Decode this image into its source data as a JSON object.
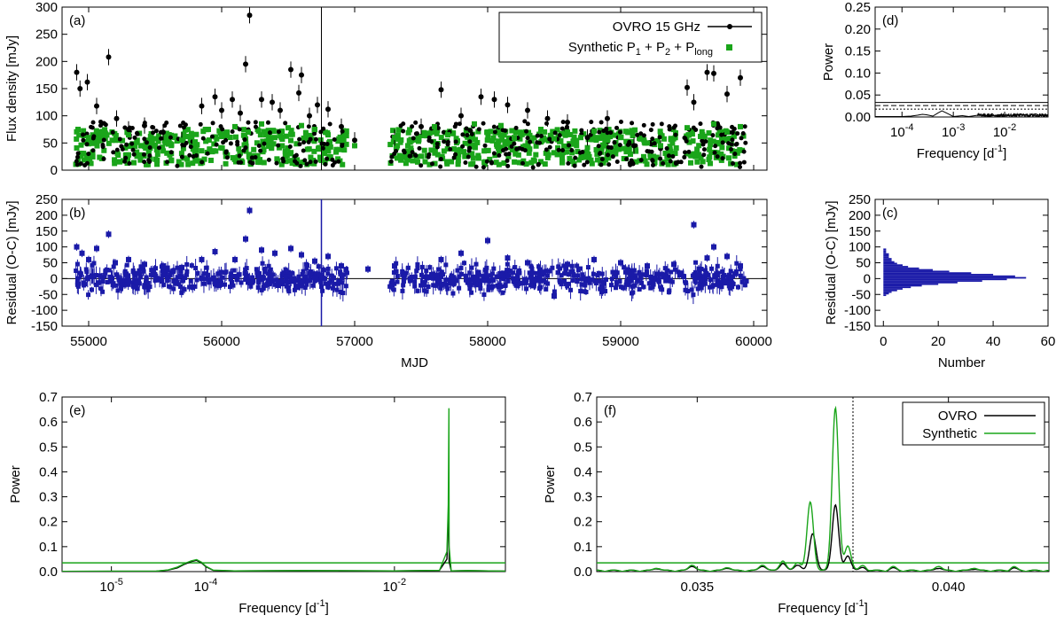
{
  "chart_data": [
    {
      "id": "a",
      "panel_label": "(a)",
      "type": "scatter",
      "ylabel": "Flux density [mJy]",
      "xlabel": "",
      "xlim": [
        54800,
        60100
      ],
      "ylim": [
        0,
        300
      ],
      "xticks": [
        55000,
        56000,
        57000,
        58000,
        59000,
        60000
      ],
      "xtick_labels_visible": false,
      "yticks": [
        0,
        50,
        100,
        150,
        200,
        250,
        300
      ],
      "legend": {
        "position": "top-right",
        "entries": [
          {
            "label": "OVRO 15 GHz",
            "color": "#000000",
            "marker": "point-line"
          },
          {
            "label": "Synthetic P",
            "sub1": "1",
            "mid1": " + P",
            "sub2": "2",
            "mid2": " + P",
            "sub3": "long",
            "color": "#1aa51a",
            "marker": "square"
          }
        ]
      },
      "series": [
        {
          "name": "OVRO 15 GHz",
          "color": "#000000",
          "x": [
            54910,
            54935,
            54990,
            55060,
            55150,
            55210,
            55300,
            55420,
            55560,
            55700,
            55850,
            55950,
            56000,
            56080,
            56140,
            56180,
            56210,
            56300,
            56380,
            56440,
            56520,
            56580,
            56600,
            56660,
            56720,
            56800,
            56900,
            57000,
            57300,
            57500,
            57650,
            57800,
            57950,
            58050,
            58150,
            58300,
            58450,
            58600,
            58750,
            58900,
            59100,
            59300,
            59500,
            59550,
            59650,
            59700,
            59800,
            59900
          ],
          "y": [
            180,
            150,
            162,
            118,
            208,
            95,
            75,
            82,
            70,
            55,
            118,
            135,
            110,
            130,
            105,
            195,
            285,
            130,
            125,
            110,
            185,
            142,
            175,
            100,
            120,
            112,
            80,
            55,
            60,
            80,
            148,
            100,
            135,
            130,
            120,
            110,
            95,
            88,
            60,
            95,
            45,
            40,
            152,
            125,
            180,
            178,
            140,
            170
          ]
        },
        {
          "name": "Synthetic P1 + P2 + Plong",
          "color": "#1aa51a",
          "x": [
            54920,
            55000,
            55100,
            55200,
            55300,
            55400,
            55500,
            55600,
            55700,
            55800,
            55900,
            56000,
            56100,
            56200,
            56300,
            56400,
            56500,
            56600,
            56700,
            56800,
            56900,
            57000,
            57300,
            57400,
            57600,
            57700,
            57900,
            58000,
            58100,
            58200,
            58400,
            58500,
            58600,
            58700,
            58800,
            58900,
            59000,
            59200,
            59300,
            59500,
            59600,
            59700,
            59800,
            59900
          ],
          "y": [
            75,
            60,
            70,
            55,
            65,
            45,
            58,
            48,
            55,
            52,
            75,
            62,
            80,
            70,
            85,
            60,
            78,
            82,
            75,
            65,
            55,
            45,
            60,
            45,
            80,
            65,
            85,
            70,
            82,
            60,
            75,
            58,
            70,
            60,
            72,
            55,
            60,
            50,
            45,
            78,
            62,
            85,
            70,
            80
          ]
        }
      ]
    },
    {
      "id": "b",
      "panel_label": "(b)",
      "type": "scatter",
      "ylabel": "Residual (O-C) [mJy]",
      "xlabel": "MJD",
      "xlim": [
        54800,
        60100
      ],
      "ylim": [
        -150,
        250
      ],
      "xticks": [
        55000,
        56000,
        57000,
        58000,
        59000,
        60000
      ],
      "yticks": [
        -150,
        -100,
        -50,
        0,
        50,
        100,
        150,
        200,
        250
      ],
      "series": [
        {
          "name": "Residual",
          "color": "#1a1aa8",
          "x": [
            54910,
            54950,
            55000,
            55060,
            55150,
            55200,
            55300,
            55420,
            55560,
            55700,
            55850,
            55950,
            56100,
            56180,
            56210,
            56300,
            56400,
            56520,
            56600,
            56700,
            56800,
            56900,
            57100,
            57300,
            57650,
            57800,
            58000,
            58150,
            58300,
            58500,
            58600,
            58800,
            59000,
            59200,
            59400,
            59550,
            59650,
            59700,
            59800,
            59900
          ],
          "y": [
            100,
            80,
            60,
            95,
            140,
            50,
            60,
            45,
            40,
            35,
            60,
            85,
            60,
            125,
            215,
            90,
            80,
            95,
            75,
            55,
            70,
            40,
            30,
            40,
            60,
            80,
            120,
            65,
            50,
            -55,
            45,
            60,
            50,
            40,
            45,
            170,
            65,
            100,
            70,
            40
          ]
        }
      ]
    },
    {
      "id": "c",
      "panel_label": "(c)",
      "type": "bar",
      "orientation": "horizontal",
      "xlabel": "Number",
      "ylabel": "Residual (O-C) [mJy]",
      "xlim": [
        -3,
        60
      ],
      "ylim": [
        -150,
        250
      ],
      "xticks": [
        0,
        20,
        40,
        60
      ],
      "yticks": [
        -150,
        -100,
        -50,
        0,
        50,
        100,
        150,
        200,
        250
      ],
      "bins": [
        -55,
        -50,
        -45,
        -40,
        -35,
        -30,
        -25,
        -20,
        -15,
        -10,
        -5,
        0,
        5,
        10,
        15,
        20,
        25,
        30,
        35,
        40,
        45,
        50,
        55,
        60,
        65,
        70,
        75,
        80,
        85,
        90
      ],
      "counts": [
        1,
        2,
        3,
        5,
        7,
        10,
        14,
        20,
        27,
        36,
        45,
        52,
        48,
        40,
        32,
        24,
        18,
        13,
        9,
        7,
        5,
        4,
        3,
        3,
        2,
        2,
        2,
        1,
        1,
        1
      ],
      "color": "#1a1aa8"
    },
    {
      "id": "d",
      "panel_label": "(d)",
      "type": "line",
      "xscale": "log",
      "xlabel": "Frequency [d",
      "xlabel_sup": "-1",
      "xlabel_end": "]",
      "ylabel": "Power",
      "xlim": [
        3e-05,
        0.07
      ],
      "ylim": [
        0,
        0.25
      ],
      "xticks": [
        0.0001,
        0.001,
        0.01
      ],
      "xtick_mantissa": "10",
      "xtick_exponents": [
        "-4",
        "-3",
        "-2"
      ],
      "yticks": [
        0,
        0.05,
        0.1,
        0.15,
        0.2,
        0.25
      ],
      "ytick_labels": [
        "0.00",
        "0.05",
        "0.10",
        "0.15",
        "0.20",
        "0.25"
      ],
      "hlines": [
        {
          "y": 0.033,
          "style": "solid"
        },
        {
          "y": 0.026,
          "style": "dash"
        },
        {
          "y": 0.018,
          "style": "dot"
        }
      ],
      "series": [
        {
          "name": "OVRO",
          "color": "#000000",
          "x": [
            3e-05,
            6e-05,
            0.0001,
            0.00015,
            0.0002,
            0.00025,
            0.0003,
            0.0004,
            0.0005,
            0.0006,
            0.0008,
            0.001,
            0.0015,
            0.002,
            0.003,
            0.005,
            0.008,
            0.012,
            0.02,
            0.03,
            0.04,
            0.05,
            0.07
          ],
          "y": [
            0.001,
            0.001,
            0.001,
            0.002,
            0.004,
            0.006,
            0.005,
            0.002,
            0.009,
            0.014,
            0.007,
            0.001,
            0.003,
            0.001,
            0.004,
            0.002,
            0.005,
            0.003,
            0.006,
            0.004,
            0.007,
            0.003,
            0.005
          ]
        }
      ]
    },
    {
      "id": "e",
      "panel_label": "(e)",
      "type": "line",
      "xscale": "log",
      "xlabel": "Frequency [d",
      "xlabel_sup": "-1",
      "xlabel_end": "]",
      "ylabel": "Power",
      "xlim": [
        3e-06,
        0.15
      ],
      "ylim": [
        0,
        0.7
      ],
      "xticks": [
        1e-05,
        0.0001,
        0.01
      ],
      "xtick_mantissa": "10",
      "xtick_exponents": [
        "-5",
        "-4",
        "-2"
      ],
      "yticks": [
        0,
        0.1,
        0.2,
        0.3,
        0.4,
        0.5,
        0.6,
        0.7
      ],
      "ytick_labels": [
        "0.0",
        "0.1",
        "0.2",
        "0.3",
        "0.4",
        "0.5",
        "0.6",
        "0.7"
      ],
      "hlines": [
        {
          "y": 0.035,
          "style": "solid",
          "color": "#1aa51a"
        }
      ],
      "series": [
        {
          "name": "OVRO",
          "color": "#000000",
          "x": [
            3e-06,
            3e-05,
            4e-05,
            5e-05,
            6e-05,
            7e-05,
            8e-05,
            9e-05,
            0.0001,
            0.00012,
            0.0002,
            0.001,
            0.01,
            0.03,
            0.036,
            0.0375,
            0.0378,
            0.038,
            0.04,
            0.06,
            0.1,
            0.15
          ],
          "y": [
            0.001,
            0.002,
            0.006,
            0.015,
            0.03,
            0.04,
            0.045,
            0.035,
            0.02,
            0.005,
            0.003,
            0.004,
            0.003,
            0.005,
            0.05,
            0.26,
            0.15,
            0.04,
            0.003,
            0.004,
            0.003,
            0.002
          ]
        },
        {
          "name": "Synthetic",
          "color": "#1aa51a",
          "x": [
            3e-06,
            3e-05,
            4e-05,
            5e-05,
            6e-05,
            7e-05,
            8e-05,
            9e-05,
            0.0001,
            0.00012,
            0.0002,
            0.001,
            0.01,
            0.03,
            0.036,
            0.0372,
            0.0378,
            0.038,
            0.04,
            0.06,
            0.1,
            0.15
          ],
          "y": [
            0.001,
            0.002,
            0.007,
            0.018,
            0.033,
            0.043,
            0.048,
            0.038,
            0.022,
            0.006,
            0.003,
            0.004,
            0.003,
            0.005,
            0.08,
            0.27,
            0.655,
            0.1,
            0.003,
            0.004,
            0.003,
            0.002
          ]
        }
      ]
    },
    {
      "id": "f",
      "panel_label": "(f)",
      "type": "line",
      "xlabel": "Frequency [d",
      "xlabel_sup": "-1",
      "xlabel_end": "]",
      "ylabel": "Power",
      "xlim": [
        0.033,
        0.042
      ],
      "ylim": [
        0,
        0.7
      ],
      "xticks": [
        0.035,
        0.04
      ],
      "xtick_labels": [
        "0.035",
        "0.040"
      ],
      "yticks": [
        0,
        0.1,
        0.2,
        0.3,
        0.4,
        0.5,
        0.6,
        0.7
      ],
      "ytick_labels": [
        "0.0",
        "0.1",
        "0.2",
        "0.3",
        "0.4",
        "0.5",
        "0.6",
        "0.7"
      ],
      "vline": {
        "x": 0.0381,
        "style": "dot"
      },
      "hlines": [
        {
          "y": 0.035,
          "style": "solid",
          "color": "#1aa51a"
        }
      ],
      "legend": {
        "position": "top-right",
        "entries": [
          {
            "label": "OVRO",
            "color": "#000000"
          },
          {
            "label": "Synthetic",
            "color": "#1aa51a"
          }
        ]
      },
      "series": [
        {
          "name": "OVRO",
          "color": "#000000",
          "peaks": [
            [
              0.0342,
              0.01
            ],
            [
              0.0349,
              0.02
            ],
            [
              0.0356,
              0.012
            ],
            [
              0.0363,
              0.02
            ],
            [
              0.0367,
              0.03
            ],
            [
              0.037,
              0.025
            ],
            [
              0.0373,
              0.15
            ],
            [
              0.03775,
              0.265
            ],
            [
              0.038,
              0.06
            ],
            [
              0.0383,
              0.012
            ],
            [
              0.0389,
              0.01
            ],
            [
              0.0398,
              0.012
            ],
            [
              0.0405,
              0.008
            ],
            [
              0.0413,
              0.01
            ]
          ]
        },
        {
          "name": "Synthetic",
          "color": "#1aa51a",
          "peaks": [
            [
              0.0342,
              0.012
            ],
            [
              0.0349,
              0.025
            ],
            [
              0.0356,
              0.015
            ],
            [
              0.0363,
              0.025
            ],
            [
              0.0367,
              0.04
            ],
            [
              0.037,
              0.035
            ],
            [
              0.03725,
              0.275
            ],
            [
              0.03775,
              0.655
            ],
            [
              0.038,
              0.1
            ],
            [
              0.0383,
              0.02
            ],
            [
              0.0389,
              0.015
            ],
            [
              0.0398,
              0.02
            ],
            [
              0.0405,
              0.012
            ],
            [
              0.0413,
              0.015
            ]
          ]
        }
      ]
    }
  ]
}
